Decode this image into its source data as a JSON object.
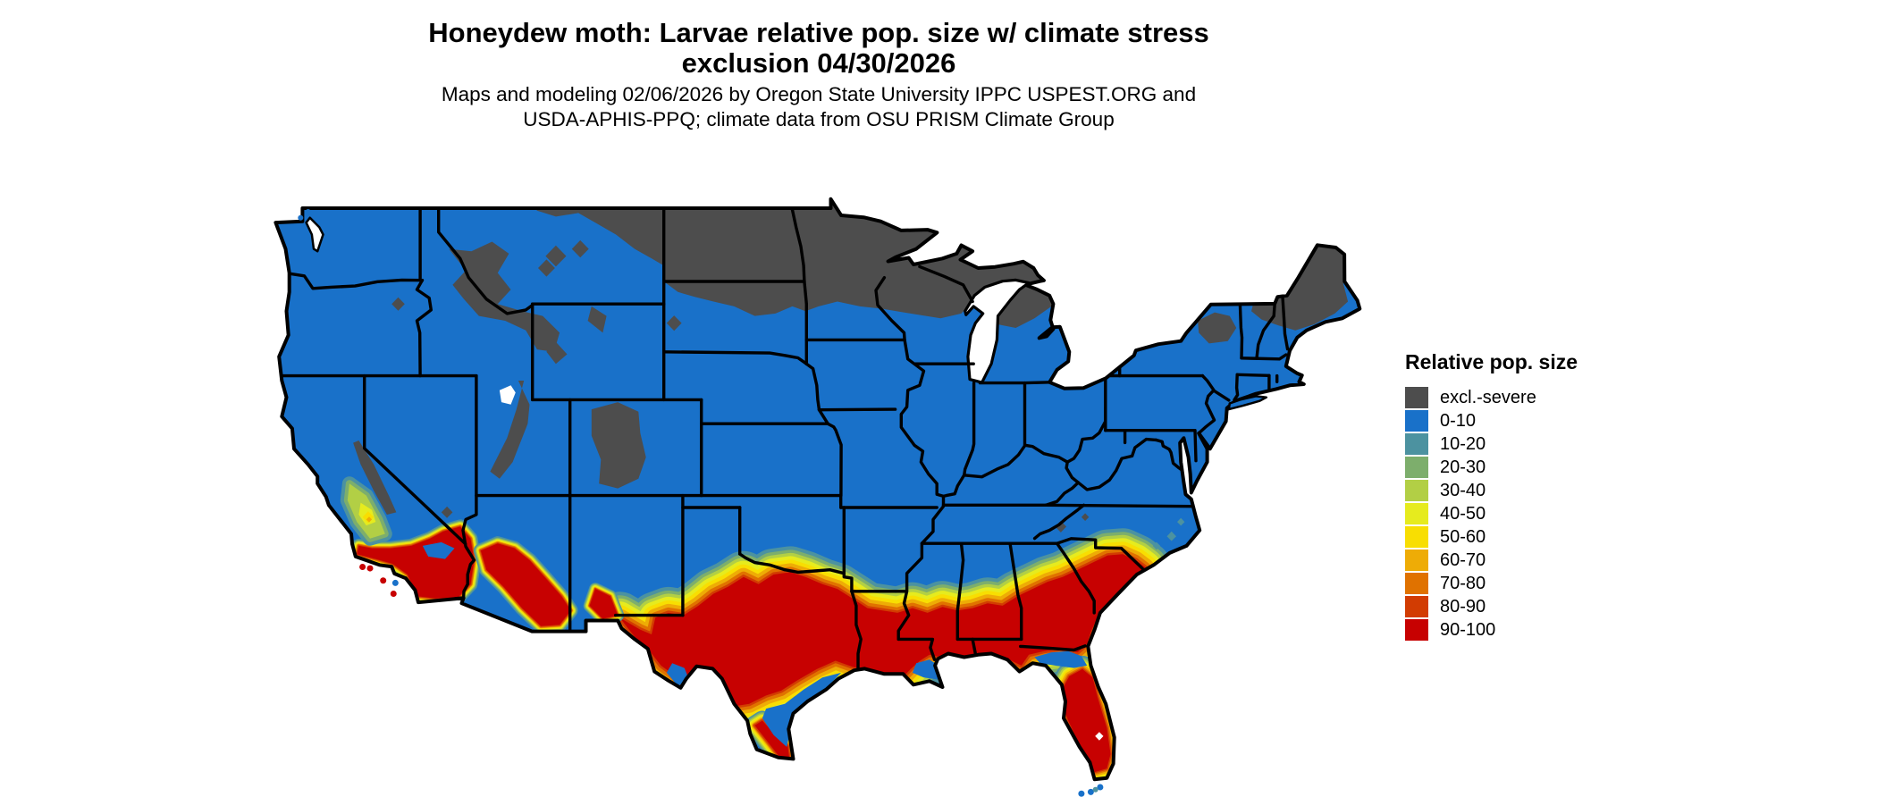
{
  "title": {
    "line1": "Honeydew moth: Larvae relative pop. size w/ climate stress",
    "line2": "exclusion 04/30/2026"
  },
  "subtitle": {
    "line1": "Maps and modeling 02/06/2026 by Oregon State University IPPC USPEST.ORG and",
    "line2": "USDA-APHIS-PPQ; climate data from OSU PRISM Climate Group"
  },
  "legend": {
    "title": "Relative pop. size",
    "items": [
      {
        "id": "excl",
        "label": "excl.-severe",
        "color": "#4D4D4D"
      },
      {
        "id": "0-10",
        "label": "0-10",
        "color": "#1971C9"
      },
      {
        "id": "10-20",
        "label": "10-20",
        "color": "#4C92A0"
      },
      {
        "id": "20-30",
        "label": "20-30",
        "color": "#7DAE6C"
      },
      {
        "id": "30-40",
        "label": "30-40",
        "color": "#B2CF45"
      },
      {
        "id": "40-50",
        "label": "40-50",
        "color": "#E6EB1E"
      },
      {
        "id": "50-60",
        "label": "50-60",
        "color": "#F8DE02"
      },
      {
        "id": "60-70",
        "label": "60-70",
        "color": "#EEAC06"
      },
      {
        "id": "70-80",
        "label": "70-80",
        "color": "#E07200"
      },
      {
        "id": "80-90",
        "label": "80-90",
        "color": "#D23C02"
      },
      {
        "id": "90-100",
        "label": "90-100",
        "color": "#C70101"
      }
    ]
  },
  "map": {
    "water_color": "#FFFFFF",
    "boundary_color": "#000000"
  }
}
